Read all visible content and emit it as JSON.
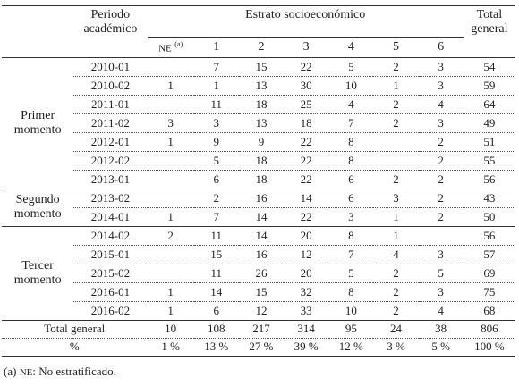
{
  "table": {
    "headers": {
      "period": "Periodo académico",
      "strata": "Estrato socioeconómico",
      "total": "Total general",
      "ne": "NE",
      "ne_note": "(a)",
      "strata_levels": [
        1,
        2,
        3,
        4,
        5,
        6
      ]
    },
    "groups": [
      {
        "label": "Primer momento",
        "rows": [
          {
            "period": "2010-01",
            "values": [
              null,
              7,
              15,
              22,
              5,
              2,
              3
            ],
            "total": 54
          },
          {
            "period": "2010-02",
            "values": [
              1,
              1,
              13,
              30,
              10,
              1,
              3
            ],
            "total": 59
          },
          {
            "period": "2011-01",
            "values": [
              null,
              11,
              18,
              25,
              4,
              2,
              4
            ],
            "total": 64
          },
          {
            "period": "2011-02",
            "values": [
              3,
              3,
              13,
              18,
              7,
              2,
              3
            ],
            "total": 49
          },
          {
            "period": "2012-01",
            "values": [
              1,
              9,
              9,
              22,
              8,
              null,
              2
            ],
            "total": 51
          },
          {
            "period": "2012-02",
            "values": [
              null,
              5,
              18,
              22,
              8,
              null,
              2
            ],
            "total": 55
          },
          {
            "period": "2013-01",
            "values": [
              null,
              6,
              18,
              22,
              6,
              2,
              2
            ],
            "total": 56
          }
        ]
      },
      {
        "label": "Segundo momento",
        "rows": [
          {
            "period": "2013-02",
            "values": [
              null,
              2,
              16,
              14,
              6,
              3,
              2
            ],
            "total": 43
          },
          {
            "period": "2014-01",
            "values": [
              1,
              7,
              14,
              22,
              3,
              1,
              2
            ],
            "total": 50
          }
        ]
      },
      {
        "label": "Tercer momento",
        "rows": [
          {
            "period": "2014-02",
            "values": [
              2,
              11,
              14,
              20,
              8,
              1,
              null
            ],
            "total": 56
          },
          {
            "period": "2015-01",
            "values": [
              null,
              15,
              16,
              12,
              7,
              4,
              3
            ],
            "total": 57
          },
          {
            "period": "2015-02",
            "values": [
              null,
              11,
              26,
              20,
              5,
              2,
              5
            ],
            "total": 69
          },
          {
            "period": "2016-01",
            "values": [
              1,
              14,
              15,
              32,
              8,
              2,
              3
            ],
            "total": 75
          },
          {
            "period": "2016-02",
            "values": [
              1,
              6,
              12,
              33,
              10,
              2,
              4
            ],
            "total": 68
          }
        ]
      }
    ],
    "totals": {
      "label": "Total general",
      "values": [
        10,
        108,
        217,
        314,
        95,
        24,
        38
      ],
      "total": 806
    },
    "percent": {
      "label": "%",
      "values": [
        "1 %",
        "13 %",
        "27 %",
        "39 %",
        "12 %",
        "3 %",
        "5 %"
      ],
      "total": "100 %"
    }
  },
  "footnote": {
    "marker": "(a)",
    "abbr": "NE",
    "text": ": No estratificado."
  }
}
